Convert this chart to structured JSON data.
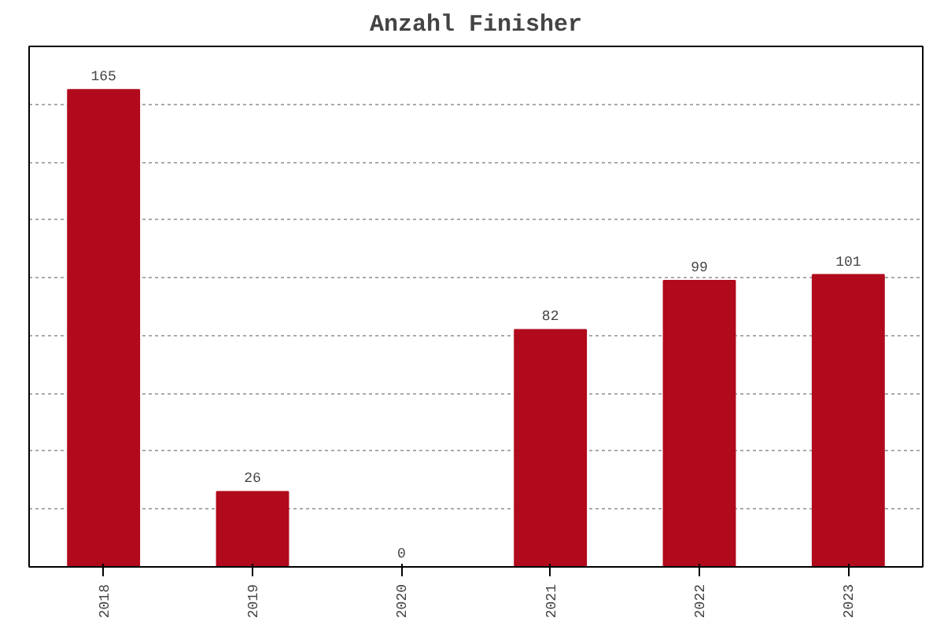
{
  "chart_data": {
    "type": "bar",
    "title": "Anzahl Finisher",
    "categories": [
      "2018",
      "2019",
      "2020",
      "2021",
      "2022",
      "2023"
    ],
    "values": [
      165,
      26,
      0,
      82,
      99,
      101
    ],
    "color": "#b00a1c",
    "ylim": [
      0,
      180
    ],
    "yticks": [
      0,
      20,
      40,
      60,
      80,
      100,
      120,
      140,
      160,
      180
    ],
    "grid": "y",
    "data_labels": true,
    "tick_labels": "x"
  }
}
